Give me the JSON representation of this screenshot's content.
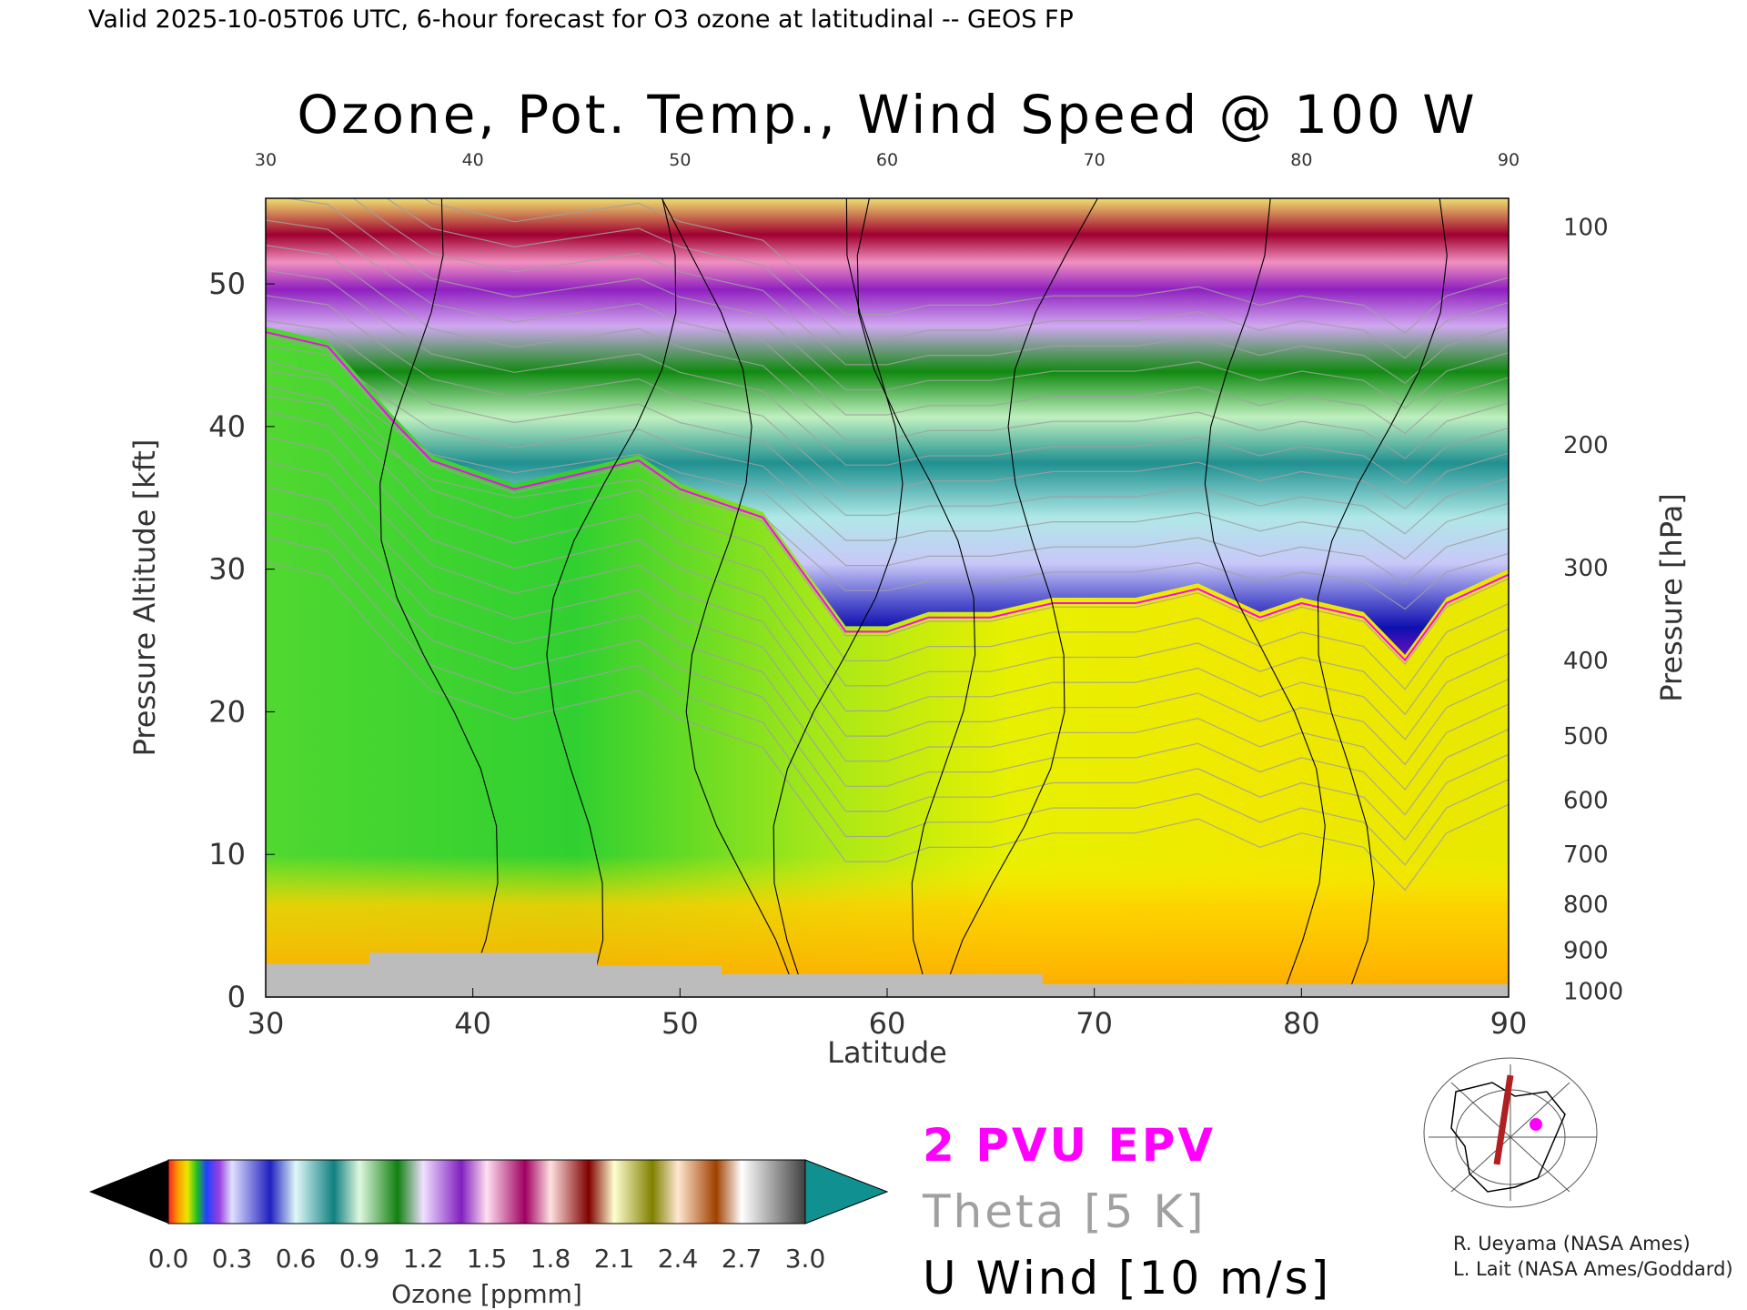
{
  "header": "Valid 2025-10-05T06 UTC, 6-hour forecast for O3 ozone at latitudinal -- GEOS FP",
  "colors": {
    "epv": "#ff00ff",
    "theta": "#a0a0a0",
    "wind": "#000000",
    "ground": "#bcbcbc"
  },
  "chart_data": {
    "type": "heatmap",
    "title": "Ozone, Pot. Temp., Wind Speed @ 100 W",
    "xlabel": "Latitude",
    "ylabel": "Pressure Altitude [kft]",
    "ylabel_right": "Pressure [hPa]",
    "xlim": [
      30,
      90
    ],
    "ylim": [
      0,
      56
    ],
    "x_ticks": [
      "30",
      "40",
      "50",
      "60",
      "70",
      "80",
      "90"
    ],
    "y_ticks": [
      "0",
      "10",
      "20",
      "30",
      "40",
      "50"
    ],
    "pressure_ticks": [
      "100",
      "200",
      "300",
      "400",
      "500",
      "600",
      "700",
      "800",
      "900",
      "1000"
    ],
    "pressure_tick_altitudes_kft": [
      54,
      38.7,
      30.1,
      23.6,
      18.3,
      13.8,
      10,
      6.5,
      3.3,
      0.4
    ],
    "tropopause_kft": {
      "lat": [
        30,
        33,
        36,
        38,
        40,
        42,
        45,
        48,
        50,
        52,
        54,
        56,
        58,
        60,
        62,
        65,
        68,
        70,
        72,
        75,
        78,
        80,
        83,
        85,
        87,
        90
      ],
      "values": [
        47,
        46,
        41,
        38,
        37,
        36,
        37,
        38,
        36,
        35,
        34,
        30,
        26,
        26,
        27,
        27,
        28,
        28,
        28,
        29,
        27,
        28,
        27,
        24,
        28,
        30
      ]
    },
    "colorbar": {
      "label": "Ozone [ppmm]",
      "ticks": [
        "0.0",
        "0.3",
        "0.6",
        "0.9",
        "1.2",
        "1.5",
        "1.8",
        "2.1",
        "2.4",
        "2.7",
        "3.0"
      ]
    },
    "legend": [
      {
        "label": "2 PVU EPV",
        "color": "#ff00ff"
      },
      {
        "label": "Theta [5 K]",
        "color": "#a0a0a0"
      },
      {
        "label": "U Wind [10 m/s]",
        "color": "#000000"
      }
    ]
  },
  "credits": [
    "R. Ueyama (NASA Ames)",
    "L. Lait (NASA Ames/Goddard)"
  ]
}
